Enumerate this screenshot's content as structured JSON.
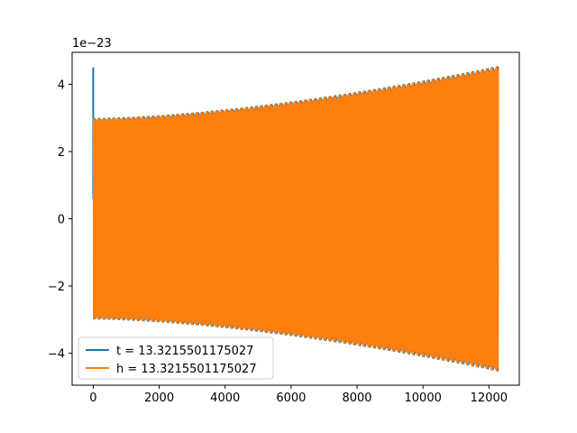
{
  "chart_data": {
    "type": "line",
    "title": "",
    "xlabel": "",
    "ylabel": "",
    "y_offset_label": "1e−23",
    "xlim": [
      -640,
      12920
    ],
    "ylim": [
      -4.95,
      4.95
    ],
    "x_ticks": [
      0,
      2000,
      4000,
      6000,
      8000,
      10000,
      12000
    ],
    "x_tick_labels": [
      "0",
      "2000",
      "4000",
      "6000",
      "8000",
      "10000",
      "12000"
    ],
    "y_ticks": [
      -4,
      -2,
      0,
      2,
      4
    ],
    "y_tick_labels": [
      "−4",
      "−2",
      "0",
      "2",
      "4"
    ],
    "grid": false,
    "legend_position": "lower-left",
    "series": [
      {
        "name": "t = 13.3215501175027",
        "color": "#1f77b4",
        "x_range": [
          0,
          12290
        ],
        "envelope_start": 3.0,
        "envelope_end": 4.55,
        "initial_spike": 4.5
      },
      {
        "name": "h = 13.3215501175027",
        "color": "#ff7f0e",
        "x_range": [
          0,
          12290
        ],
        "envelope_start": 3.0,
        "envelope_end": 4.55
      }
    ]
  }
}
